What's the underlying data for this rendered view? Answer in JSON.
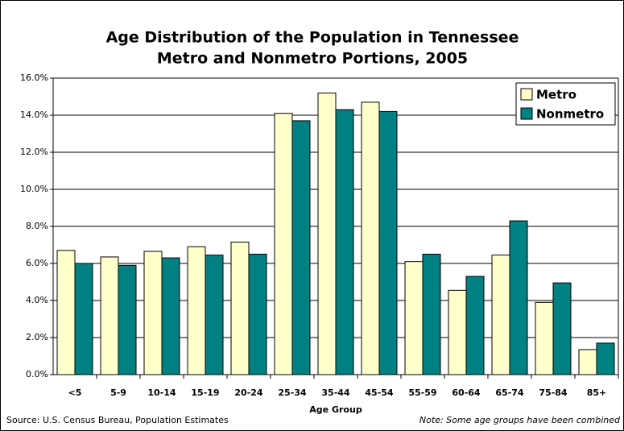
{
  "chart_data": {
    "type": "bar",
    "title": [
      "Age Distribution of the Population in Tennessee",
      "Metro and Nonmetro Portions, 2005"
    ],
    "x_label": "Age Group",
    "source": "Source: U.S. Census Bureau, Population Estimates",
    "note": "Note: Some age groups have been combined",
    "categories": [
      "<5",
      "5-9",
      "10-14",
      "15-19",
      "20-24",
      "25-34",
      "35-44",
      "45-54",
      "55-59",
      "60-64",
      "65-74",
      "75-84",
      "85+"
    ],
    "series": [
      {
        "name": "Metro",
        "color": "#ffffcc",
        "values": [
          6.7,
          6.35,
          6.65,
          6.9,
          7.15,
          14.1,
          15.2,
          14.7,
          6.1,
          4.55,
          6.45,
          3.9,
          1.35
        ]
      },
      {
        "name": "Nonmetro",
        "color": "#008080",
        "values": [
          6.0,
          5.9,
          6.3,
          6.45,
          6.5,
          13.7,
          14.3,
          14.2,
          6.5,
          5.3,
          8.3,
          4.95,
          1.7
        ]
      }
    ],
    "ylim": [
      0,
      16
    ],
    "yticks": [
      {
        "value": 0,
        "label": "0.0%"
      },
      {
        "value": 2,
        "label": "2.0%"
      },
      {
        "value": 4,
        "label": "4.0%"
      },
      {
        "value": 6,
        "label": "6.0%"
      },
      {
        "value": 8,
        "label": "8.0%"
      },
      {
        "value": 10,
        "label": "10.0%"
      },
      {
        "value": 12,
        "label": "12.0%"
      },
      {
        "value": 14,
        "label": "14.0%"
      },
      {
        "value": 16,
        "label": "16.0%"
      }
    ],
    "grid": true,
    "legend": "top-right"
  }
}
